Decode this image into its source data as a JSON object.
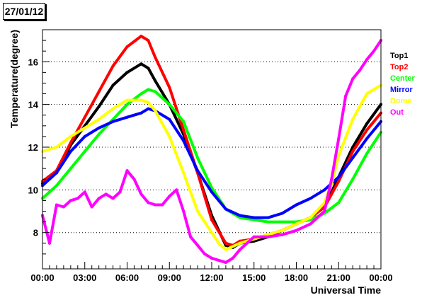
{
  "chart_data": {
    "type": "scatter",
    "title": "27/01/12",
    "xlabel": "Universal Time",
    "ylabel": "Temperature(degree)",
    "xlim": [
      0,
      24
    ],
    "ylim": [
      6.3,
      17.5
    ],
    "grid": "horizontal dotted",
    "legend_position": "right",
    "x_ticks": [
      {
        "x": 0,
        "label": "00:00"
      },
      {
        "x": 3,
        "label": "03:00"
      },
      {
        "x": 6,
        "label": "06:00"
      },
      {
        "x": 9,
        "label": "09:00"
      },
      {
        "x": 12,
        "label": "12:00"
      },
      {
        "x": 15,
        "label": "15:00"
      },
      {
        "x": 18,
        "label": "18:00"
      },
      {
        "x": 21,
        "label": "21:00"
      },
      {
        "x": 24,
        "label": "00:00"
      }
    ],
    "y_ticks": [
      {
        "y": 8,
        "label": "8"
      },
      {
        "y": 10,
        "label": "10"
      },
      {
        "y": 12,
        "label": "12"
      },
      {
        "y": 14,
        "label": "14"
      },
      {
        "y": 16,
        "label": "16"
      }
    ],
    "series": [
      {
        "name": "Top1",
        "color": "#000000",
        "x": [
          0,
          1,
          2,
          3,
          4,
          5,
          6,
          7,
          7.5,
          8,
          9,
          10,
          11,
          12,
          13,
          13.5,
          14,
          15,
          16,
          17,
          18,
          19,
          20,
          21,
          22,
          23,
          24
        ],
        "y": [
          10.3,
          10.8,
          12.1,
          13.0,
          13.9,
          14.9,
          15.5,
          15.9,
          15.7,
          15.1,
          14.0,
          12.6,
          10.8,
          8.8,
          7.4,
          7.3,
          7.5,
          7.6,
          7.8,
          8.1,
          8.4,
          8.7,
          9.2,
          10.6,
          12.0,
          13.1,
          14.0
        ]
      },
      {
        "name": "Top2",
        "color": "#ff0000",
        "x": [
          0,
          1,
          2,
          3,
          4,
          5,
          6,
          7,
          7.5,
          8,
          9,
          10,
          11,
          12,
          13,
          13.5,
          14,
          15,
          16,
          17,
          18,
          19,
          20,
          21,
          22,
          23,
          24
        ],
        "y": [
          10.4,
          10.9,
          12.2,
          13.4,
          14.6,
          15.8,
          16.7,
          17.2,
          17.0,
          16.2,
          14.8,
          12.8,
          10.8,
          8.6,
          7.5,
          7.4,
          7.6,
          7.7,
          7.9,
          8.1,
          8.4,
          8.7,
          9.2,
          10.4,
          11.8,
          12.8,
          13.6
        ]
      },
      {
        "name": "Center",
        "color": "#00ff00",
        "x": [
          0,
          1,
          2,
          3,
          4,
          5,
          6,
          7,
          7.5,
          8,
          9,
          10,
          11,
          12,
          13,
          14,
          15,
          16,
          17,
          18,
          19,
          20,
          21,
          22,
          23,
          24
        ],
        "y": [
          9.6,
          10.2,
          11.0,
          11.8,
          12.6,
          13.3,
          14.0,
          14.5,
          14.7,
          14.6,
          14.0,
          13.2,
          11.5,
          10.1,
          9.1,
          8.7,
          8.6,
          8.5,
          8.5,
          8.5,
          8.6,
          8.9,
          9.4,
          10.5,
          11.7,
          12.7
        ]
      },
      {
        "name": "Mirror",
        "color": "#0000ff",
        "x": [
          0,
          1,
          2,
          3,
          4,
          5,
          6,
          7,
          7.5,
          8,
          9,
          10,
          11,
          12,
          13,
          14,
          15,
          16,
          17,
          18,
          19,
          20,
          21,
          22,
          23,
          24
        ],
        "y": [
          10.2,
          10.8,
          11.8,
          12.5,
          12.9,
          13.2,
          13.4,
          13.6,
          13.8,
          13.7,
          13.3,
          12.3,
          10.9,
          9.9,
          9.1,
          8.8,
          8.7,
          8.7,
          8.9,
          9.3,
          9.6,
          10.0,
          10.6,
          11.5,
          12.4,
          13.2
        ]
      },
      {
        "name": "Dome",
        "color": "#ffff00",
        "x": [
          0,
          1,
          2,
          3,
          4,
          5,
          6,
          7,
          7.5,
          8,
          9,
          10,
          11,
          12,
          12.5,
          13,
          14,
          15,
          16,
          17,
          18,
          19,
          20,
          20.5,
          21,
          22,
          23,
          24
        ],
        "y": [
          11.8,
          12.0,
          12.5,
          12.9,
          13.3,
          13.8,
          14.2,
          14.2,
          14.1,
          13.7,
          12.5,
          10.8,
          9.0,
          8.0,
          7.5,
          7.2,
          7.5,
          7.7,
          7.9,
          8.1,
          8.4,
          8.7,
          9.4,
          10.3,
          11.6,
          13.3,
          14.5,
          14.9
        ]
      },
      {
        "name": "Out",
        "color": "#ff00ff",
        "x": [
          0,
          0.5,
          1,
          1.5,
          2,
          2.5,
          3,
          3.5,
          4,
          4.5,
          5,
          5.5,
          6,
          6.5,
          7,
          7.5,
          8,
          8.5,
          9,
          9.5,
          10,
          10.5,
          11,
          11.5,
          12,
          12.5,
          13,
          13.5,
          14,
          15,
          16,
          17,
          18,
          19,
          20,
          20.5,
          21,
          21.5,
          22,
          22.5,
          23,
          23.5,
          24
        ],
        "y": [
          8.8,
          7.5,
          9.3,
          9.2,
          9.5,
          9.6,
          9.9,
          9.2,
          9.6,
          9.8,
          9.6,
          9.9,
          10.9,
          10.5,
          9.8,
          9.4,
          9.3,
          9.3,
          9.7,
          10.0,
          9.0,
          7.8,
          7.4,
          7.0,
          6.8,
          6.7,
          6.6,
          6.8,
          7.2,
          7.8,
          7.8,
          7.9,
          8.1,
          8.4,
          9.0,
          10.5,
          12.4,
          14.4,
          15.2,
          15.6,
          16.1,
          16.5,
          17.0
        ]
      }
    ]
  }
}
